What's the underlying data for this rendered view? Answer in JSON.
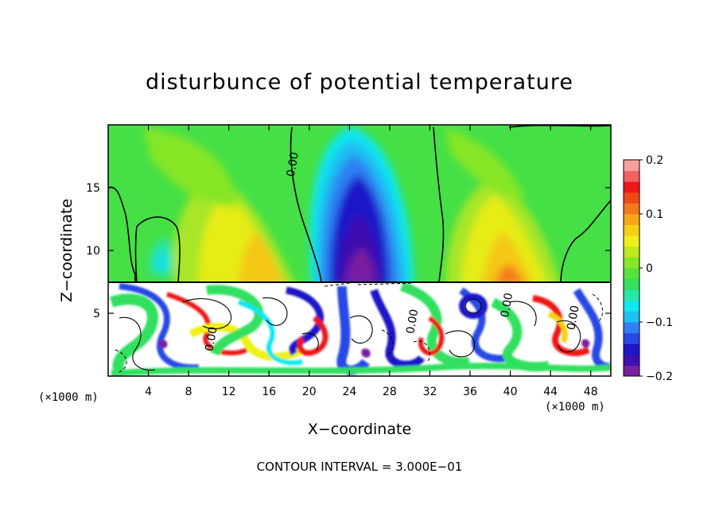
{
  "chart_data": {
    "type": "heatmap",
    "title": "disturbunce of potential temperature",
    "xlabel": "X−coordinate",
    "ylabel": "Z−coordinate",
    "x_unit": "(×1000 m)",
    "x_unit_right": "(×1000 m)",
    "xlim": [
      0,
      50
    ],
    "ylim": [
      0,
      20
    ],
    "x_ticks": [
      4,
      8,
      12,
      16,
      20,
      24,
      28,
      32,
      36,
      40,
      44,
      48
    ],
    "y_ticks": [
      5,
      10,
      15
    ],
    "footer": "CONTOUR INTERVAL = 3.000E−01",
    "colorbar": {
      "min": -0.2,
      "max": 0.2,
      "ticks": [
        {
          "value": 0.2,
          "label": "0.2"
        },
        {
          "value": 0.1,
          "label": "0.1"
        },
        {
          "value": 0,
          "label": "0"
        },
        {
          "value": -0.1,
          "label": "−0.1"
        },
        {
          "value": -0.2,
          "label": "−0.2"
        }
      ],
      "colors": [
        "#7a1fa0",
        "#3c0fb0",
        "#1f14c8",
        "#2848e6",
        "#2f7ff2",
        "#1fbef2",
        "#10e8f0",
        "#26e6a8",
        "#33e060",
        "#55e23c",
        "#86e628",
        "#bde81c",
        "#eef016",
        "#f5d016",
        "#f6a818",
        "#f47a1c",
        "#f04818",
        "#ee1818",
        "#f46060",
        "#f8a0a0"
      ]
    },
    "contour_labels": [
      {
        "text": "0.00",
        "x": 18.7,
        "z": 16.8
      },
      {
        "text": "0.00",
        "x": 10.6,
        "z": 2.9
      },
      {
        "text": "0.00",
        "x": 30.6,
        "z": 4.3
      },
      {
        "text": "0.00",
        "x": 40.0,
        "z": 5.6
      },
      {
        "text": "0.00",
        "x": 46.6,
        "z": 4.6
      }
    ]
  }
}
